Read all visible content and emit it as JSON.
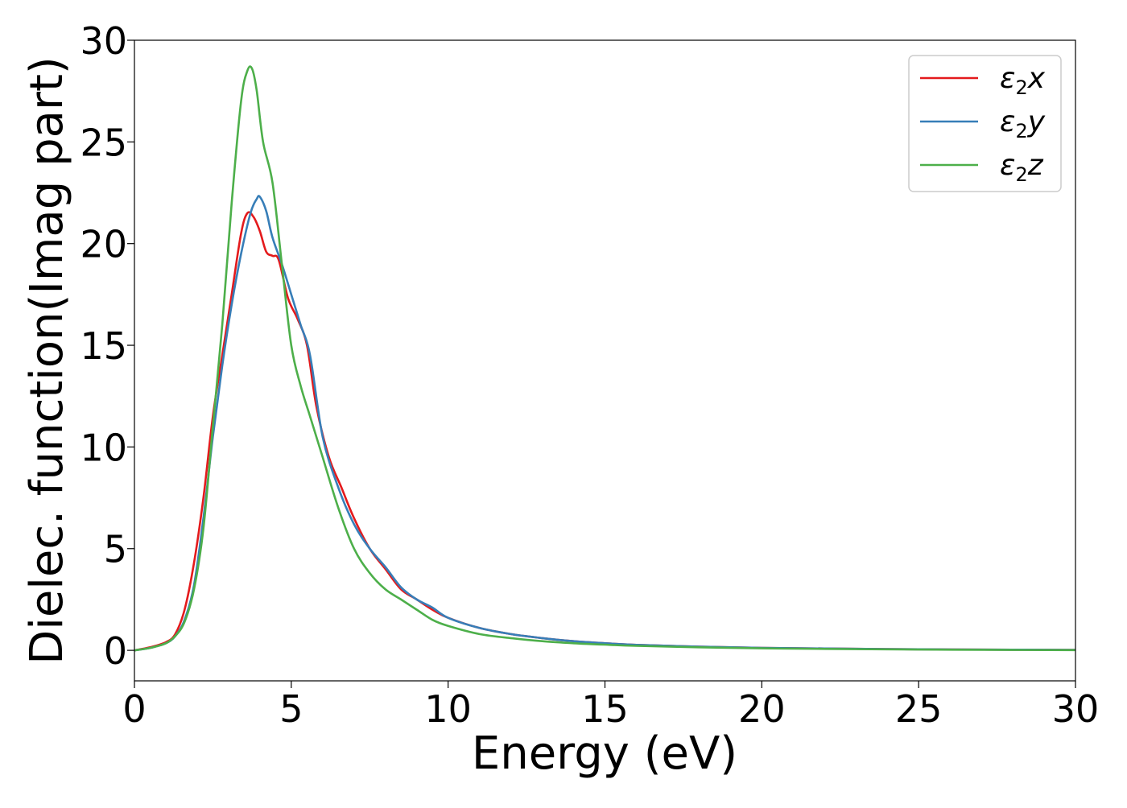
{
  "chart_data": {
    "type": "line",
    "xlabel": "Energy (eV)",
    "ylabel": "Dielec. function(Imag part)",
    "xlim": [
      0,
      30
    ],
    "ylim": [
      -1.5,
      30
    ],
    "xticks": [
      0,
      5,
      10,
      15,
      20,
      25,
      30
    ],
    "yticks": [
      0,
      5,
      10,
      15,
      20,
      25,
      30
    ],
    "xtick_labels": [
      "0",
      "5",
      "10",
      "15",
      "20",
      "25",
      "30"
    ],
    "ytick_labels": [
      "0",
      "5",
      "10",
      "15",
      "20",
      "25",
      "30"
    ],
    "grid": false,
    "legend_position": "top-right",
    "series": [
      {
        "name": "ε₂x",
        "legend_base": "ε",
        "legend_sub": "2",
        "legend_var": "x",
        "color": "#e41a1c",
        "x": [
          0,
          0.5,
          1.0,
          1.3,
          1.6,
          1.9,
          2.2,
          2.5,
          2.8,
          3.1,
          3.4,
          3.6,
          3.8,
          4.0,
          4.2,
          4.4,
          4.6,
          4.9,
          5.2,
          5.5,
          5.8,
          6.2,
          6.6,
          7.0,
          7.5,
          8.0,
          8.5,
          9.0,
          9.5,
          10,
          11,
          12,
          13,
          14,
          15,
          16,
          18,
          20,
          22,
          25,
          28,
          30
        ],
        "y": [
          0,
          0.15,
          0.4,
          0.8,
          2.0,
          4.3,
          7.5,
          11.5,
          14.5,
          17.5,
          20.5,
          21.5,
          21.3,
          20.6,
          19.6,
          19.4,
          19.2,
          17.3,
          16.3,
          15.0,
          12.0,
          9.5,
          8.0,
          6.5,
          5.0,
          4.0,
          3.0,
          2.5,
          2.0,
          1.6,
          1.1,
          0.8,
          0.6,
          0.45,
          0.35,
          0.27,
          0.18,
          0.12,
          0.09,
          0.05,
          0.03,
          0.02
        ]
      },
      {
        "name": "ε₂y",
        "legend_base": "ε",
        "legend_sub": "2",
        "legend_var": "y",
        "color": "#377eb8",
        "x": [
          0,
          0.5,
          1.0,
          1.3,
          1.6,
          1.9,
          2.2,
          2.5,
          2.8,
          3.1,
          3.4,
          3.7,
          3.9,
          4.0,
          4.2,
          4.4,
          4.7,
          5.0,
          5.3,
          5.6,
          6.0,
          6.5,
          7.0,
          7.5,
          8.0,
          8.5,
          9.0,
          9.5,
          10,
          11,
          12,
          13,
          14,
          15,
          16,
          18,
          20,
          22,
          25,
          28,
          30
        ],
        "y": [
          0,
          0.12,
          0.35,
          0.7,
          1.5,
          3.2,
          6.5,
          10.5,
          14.0,
          17.0,
          19.5,
          21.5,
          22.2,
          22.3,
          21.6,
          20.3,
          19.0,
          17.5,
          16.0,
          14.5,
          10.5,
          8.0,
          6.2,
          5.0,
          4.1,
          3.1,
          2.5,
          2.1,
          1.6,
          1.1,
          0.8,
          0.6,
          0.45,
          0.35,
          0.27,
          0.18,
          0.12,
          0.09,
          0.05,
          0.03,
          0.02
        ]
      },
      {
        "name": "ε₂z",
        "legend_base": "ε",
        "legend_sub": "2",
        "legend_var": "z",
        "color": "#4daf4a",
        "x": [
          0,
          0.5,
          1.0,
          1.3,
          1.6,
          1.9,
          2.2,
          2.5,
          2.8,
          3.1,
          3.4,
          3.6,
          3.75,
          3.9,
          4.1,
          4.4,
          4.7,
          5.0,
          5.3,
          5.6,
          6.0,
          6.5,
          7.0,
          7.5,
          8.0,
          8.5,
          9.0,
          9.5,
          10,
          11,
          12,
          13,
          14,
          15,
          16,
          18,
          20,
          22,
          25,
          28,
          30
        ],
        "y": [
          0,
          0.12,
          0.35,
          0.7,
          1.4,
          3.0,
          6.0,
          11.0,
          16.0,
          22.0,
          27.0,
          28.5,
          28.6,
          27.5,
          25.0,
          23.0,
          19.0,
          15.0,
          13.0,
          11.5,
          9.5,
          7.0,
          5.0,
          3.8,
          3.0,
          2.5,
          2.0,
          1.5,
          1.2,
          0.8,
          0.6,
          0.45,
          0.35,
          0.28,
          0.22,
          0.15,
          0.1,
          0.07,
          0.04,
          0.02,
          0.01
        ]
      }
    ]
  }
}
